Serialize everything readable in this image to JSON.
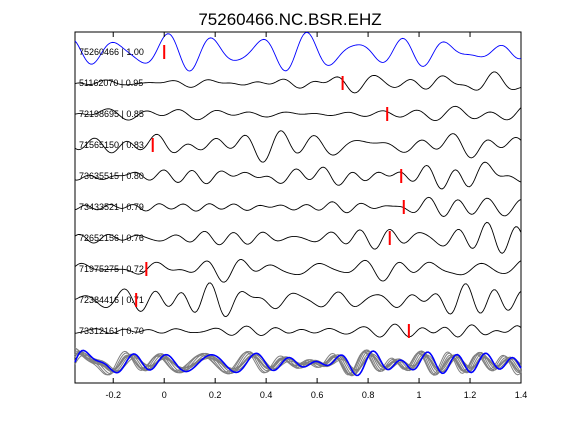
{
  "chart_data": {
    "type": "line",
    "title": "75260466.NC.BSR.EHZ",
    "xlim": [
      -0.35,
      1.4
    ],
    "xticks": [
      -0.2,
      0,
      0.2,
      0.4,
      0.6,
      0.8,
      1,
      1.2,
      1.4
    ],
    "xtick_labels": [
      "-0.2",
      "0",
      "0.2",
      "0.4",
      "0.6",
      "0.8",
      "1",
      "1.2",
      "1.4"
    ],
    "grid": false,
    "colors": {
      "reference": "#0000ff",
      "trace": "#000000",
      "pick": "#ff0000",
      "stack": "#808080"
    },
    "traces": [
      {
        "label": "75260466 | 1.00",
        "pick_time": 0.0,
        "reference": true
      },
      {
        "label": "51162070 | 0.95",
        "pick_time": 0.7
      },
      {
        "label": "72198695 | 0.85",
        "pick_time": 0.875
      },
      {
        "label": "71565150 | 0.83",
        "pick_time": -0.045
      },
      {
        "label": "73635515 | 0.80",
        "pick_time": 0.93
      },
      {
        "label": "73433521 | 0.79",
        "pick_time": 0.94
      },
      {
        "label": "72652156 | 0.76",
        "pick_time": 0.885
      },
      {
        "label": "71975275 | 0.72",
        "pick_time": -0.07
      },
      {
        "label": "72384416 | 0.71",
        "pick_time": -0.11
      },
      {
        "label": "73312161 | 0.70",
        "pick_time": 0.96
      }
    ],
    "stack_panel": {
      "series_count": 10,
      "reference_color": "#0000ff"
    }
  }
}
